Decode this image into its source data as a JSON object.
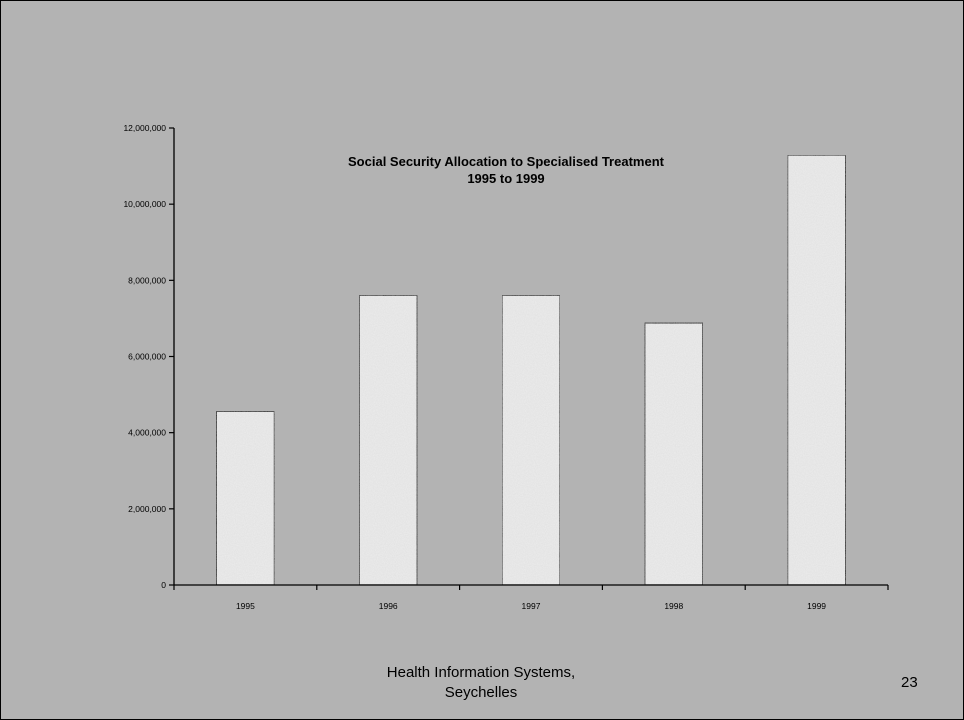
{
  "chart_data": {
    "type": "bar",
    "title": "Social Security Allocation to Specialised Treatment",
    "subtitle": "1995 to 1999",
    "categories": [
      "1995",
      "1996",
      "1997",
      "1998",
      "1999"
    ],
    "values": [
      4560000,
      7610000,
      7610000,
      6880000,
      11290000
    ],
    "ylim": [
      0,
      12000000
    ],
    "yticks": [
      "0",
      "2,000,000",
      "4,000,000",
      "6,000,000",
      "8,000,000",
      "10,000,000",
      "12,000,000"
    ],
    "ytick_values": [
      0,
      2000000,
      4000000,
      6000000,
      8000000,
      10000000,
      12000000
    ],
    "grid": false,
    "bar_color": "#ededed"
  },
  "footer": {
    "line1": "Health Information Systems,",
    "line2": "Seychelles"
  },
  "page_number": "23"
}
